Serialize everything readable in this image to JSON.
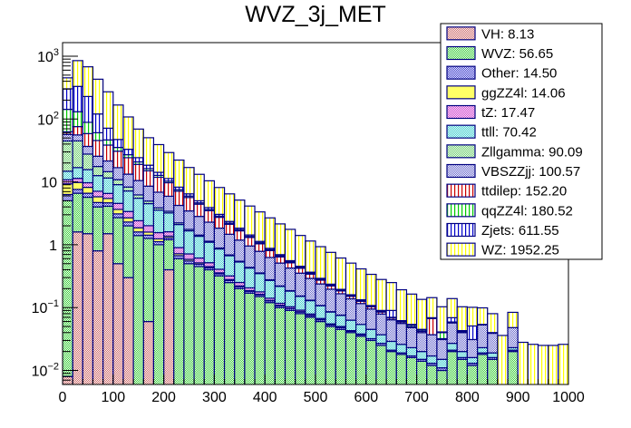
{
  "chart_data": {
    "type": "bar",
    "subtype": "stacked-histogram",
    "title": "WVZ_3j_MET",
    "xlabel": "",
    "ylabel": "",
    "xlim": [
      0,
      1000
    ],
    "ylim": [
      0.006,
      1600
    ],
    "yscale": "log",
    "bin_width": 20,
    "x_ticks": [
      0,
      100,
      200,
      300,
      400,
      500,
      600,
      700,
      800,
      900,
      1000
    ],
    "x_tick_labels": [
      "0",
      "100",
      "200",
      "300",
      "400",
      "500",
      "600",
      "700",
      "800",
      "900",
      "1000"
    ],
    "y_ticks": [
      0.01,
      0.1,
      1,
      10,
      100,
      1000
    ],
    "y_tick_labels": [
      {
        "base": "10",
        "exp": "−2"
      },
      {
        "base": "10",
        "exp": "−1"
      },
      {
        "base": "1",
        "exp": ""
      },
      {
        "base": "10",
        "exp": ""
      },
      {
        "base": "10",
        "exp": "2"
      },
      {
        "base": "10",
        "exp": "3"
      }
    ],
    "legend_position": "top-right",
    "series": [
      {
        "name": "VH",
        "total": "8.13",
        "fill": "#cc6666",
        "line": "#000080",
        "pattern": "checker",
        "values": [
          0.008,
          1.6,
          1.5,
          0.8,
          1.5,
          0.5,
          0.3,
          0,
          0.06,
          0,
          0.4,
          0,
          0,
          0,
          0,
          0,
          0,
          0,
          0,
          0,
          0,
          0,
          0,
          0,
          0,
          0,
          0,
          0,
          0,
          0,
          0,
          0,
          0,
          0,
          0,
          0,
          0,
          0,
          0,
          0,
          0,
          0,
          0,
          0,
          0,
          0,
          0,
          0,
          0,
          0
        ]
      },
      {
        "name": "WVZ",
        "total": "56.65",
        "fill": "#33cc33",
        "line": "#000080",
        "pattern": "checker",
        "values": [
          5,
          5,
          4.2,
          3.2,
          2.6,
          2.2,
          1.7,
          1.4,
          1.2,
          1.0,
          0.8,
          0.6,
          0.5,
          0.45,
          0.4,
          0.32,
          0.25,
          0.2,
          0.17,
          0.15,
          0.12,
          0.1,
          0.09,
          0.08,
          0.07,
          0.06,
          0.05,
          0.045,
          0.04,
          0.035,
          0.03,
          0.025,
          0.02,
          0.018,
          0.016,
          0.014,
          0.012,
          0.01,
          0.02,
          0.015,
          0.012,
          0.018,
          0.015,
          0,
          0.02,
          0,
          0,
          0,
          0,
          0
        ]
      },
      {
        "name": "Other",
        "total": "14.50",
        "fill": "#3333cc",
        "line": "#000080",
        "pattern": "checker",
        "values": [
          1.3,
          1.0,
          0.9,
          0.7,
          0.55,
          0.4,
          0.3,
          0.2,
          0.16,
          0.12,
          0.09,
          0.07,
          0.05,
          0.04,
          0.03,
          0.025,
          0.02,
          0.015,
          0.012,
          0.01,
          0.008,
          0.007,
          0.006,
          0.005,
          0.004,
          0.004,
          0.003,
          0.003,
          0.002,
          0.002,
          0.002,
          0.002,
          0.001,
          0.001,
          0.001,
          0.001,
          0.001,
          0.001,
          0.001,
          0.001,
          0.001,
          0.001,
          0.001,
          0,
          0.001,
          0,
          0,
          0,
          0,
          0
        ]
      },
      {
        "name": "ggZZ4l",
        "total": "14.06",
        "fill": "#ffff66",
        "line": "#000080",
        "pattern": "solid",
        "values": [
          3.0,
          2.2,
          1.6,
          1.1,
          0.8,
          0.55,
          0.38,
          0.26,
          0.17,
          0.12,
          0.08,
          0.05,
          0.035,
          0.025,
          0.018,
          0.012,
          0.009,
          0.006,
          0.004,
          0.003,
          0.002,
          0.002,
          0.001,
          0.001,
          0.001,
          0,
          0,
          0,
          0,
          0,
          0,
          0,
          0,
          0,
          0,
          0,
          0,
          0,
          0,
          0,
          0,
          0,
          0,
          0,
          0,
          0,
          0,
          0,
          0,
          0
        ]
      },
      {
        "name": "tZ",
        "total": "17.47",
        "fill": "#cc33cc",
        "line": "#000080",
        "pattern": "checker",
        "values": [
          1.5,
          1.6,
          1.5,
          1.3,
          1.1,
          0.9,
          0.7,
          0.55,
          0.42,
          0.32,
          0.24,
          0.18,
          0.13,
          0.1,
          0.07,
          0.05,
          0.04,
          0.03,
          0.02,
          0.015,
          0.011,
          0.008,
          0.006,
          0.005,
          0.004,
          0.003,
          0.002,
          0.002,
          0.001,
          0.001,
          0,
          0,
          0,
          0,
          0,
          0,
          0,
          0,
          0,
          0,
          0,
          0,
          0,
          0,
          0,
          0,
          0,
          0,
          0,
          0
        ]
      },
      {
        "name": "ttll",
        "total": "70.42",
        "fill": "#33cccc",
        "line": "#000080",
        "pattern": "checker",
        "values": [
          4,
          5.5,
          6,
          5.5,
          5,
          4.5,
          3.8,
          3.1,
          2.5,
          2.0,
          1.6,
          1.2,
          0.95,
          0.75,
          0.58,
          0.45,
          0.35,
          0.28,
          0.22,
          0.17,
          0.13,
          0.1,
          0.08,
          0.06,
          0.05,
          0.04,
          0.03,
          0.025,
          0.02,
          0.016,
          0.013,
          0.01,
          0.008,
          0.007,
          0.006,
          0.005,
          0.004,
          0.004,
          0.006,
          0.004,
          0.003,
          0.004,
          0.003,
          0,
          0.002,
          0,
          0,
          0,
          0,
          0
        ]
      },
      {
        "name": "Zllgamma",
        "total": "90.09",
        "fill": "#66cc66",
        "line": "#000080",
        "pattern": "checker",
        "values": [
          30,
          28,
          12,
          5,
          3,
          1.8,
          1.1,
          0.7,
          0.45,
          0.3,
          0.2,
          0.13,
          0.09,
          0.06,
          0.04,
          0.03,
          0.02,
          0.015,
          0.01,
          0.008,
          0.006,
          0.004,
          0.003,
          0.002,
          0.002,
          0.001,
          0.001,
          0.001,
          0,
          0,
          0,
          0,
          0,
          0,
          0,
          0,
          0,
          0,
          0,
          0,
          0,
          0,
          0,
          0,
          0,
          0,
          0,
          0,
          0,
          0
        ]
      },
      {
        "name": "VBSZZjj",
        "total": "100.57",
        "fill": "#6666cc",
        "line": "#000080",
        "pattern": "checker",
        "values": [
          12,
          11,
          9,
          8,
          7,
          6,
          5,
          4.3,
          3.6,
          3.0,
          2.5,
          2.0,
          1.7,
          1.4,
          1.15,
          0.95,
          0.78,
          0.64,
          0.52,
          0.43,
          0.35,
          0.29,
          0.24,
          0.2,
          0.16,
          0.13,
          0.11,
          0.09,
          0.075,
          0.062,
          0.05,
          0.042,
          0.035,
          0.03,
          0.025,
          0.02,
          0.02,
          0.016,
          0.03,
          0.02,
          0.015,
          0.03,
          0.02,
          0,
          0.025,
          0,
          0,
          0,
          0,
          0
        ]
      },
      {
        "name": "ttdilep",
        "total": "152.20",
        "fill": "#cc0000",
        "line": "#000080",
        "pattern": "vlines",
        "values": [
          6,
          20,
          22,
          20,
          17,
          14,
          11,
          8.5,
          6.5,
          5,
          3.8,
          2.9,
          2.2,
          1.6,
          1.2,
          0.9,
          0.65,
          0.48,
          0.35,
          0.25,
          0.18,
          0.13,
          0.09,
          0.07,
          0.05,
          0.035,
          0.025,
          0.018,
          0.013,
          0.01,
          0.008,
          0.006,
          0.004,
          0.003,
          0.002,
          0.002,
          0.03,
          0.001,
          0.001,
          0.001,
          0,
          0,
          0,
          0,
          0,
          0,
          0,
          0,
          0,
          0
        ]
      },
      {
        "name": "qqZZ4l",
        "total": "180.52",
        "fill": "#00cc00",
        "line": "#000080",
        "pattern": "vlines",
        "values": [
          80,
          55,
          30,
          15,
          8,
          4.5,
          2.8,
          1.8,
          1.2,
          0.85,
          0.6,
          0.42,
          0.3,
          0.22,
          0.16,
          0.12,
          0.09,
          0.07,
          0.05,
          0.04,
          0.03,
          0.025,
          0.02,
          0.016,
          0.013,
          0.01,
          0.008,
          0.006,
          0.005,
          0.004,
          0.003,
          0.003,
          0.002,
          0.002,
          0.003,
          0.002,
          0.001,
          0.008,
          0.001,
          0.001,
          0,
          0,
          0,
          0,
          0,
          0,
          0,
          0,
          0,
          0
        ]
      },
      {
        "name": "Zjets",
        "total": "611.55",
        "fill": "#0000cc",
        "line": "#000080",
        "pattern": "vlines",
        "values": [
          160,
          200,
          140,
          60,
          25,
          12,
          6,
          3.5,
          2.2,
          1.5,
          1.0,
          0.7,
          0.5,
          0.36,
          0.26,
          0.19,
          0.14,
          0.1,
          0.075,
          0.055,
          0.04,
          0.03,
          0.022,
          0.016,
          0.012,
          0.009,
          0.007,
          0.005,
          0.004,
          0.003,
          0.002,
          0.002,
          0.02,
          0.001,
          0.001,
          0.001,
          0.001,
          0.001,
          0.01,
          0.001,
          0.02,
          0.001,
          0.001,
          0,
          0,
          0,
          0,
          0,
          0,
          0
        ]
      },
      {
        "name": "WZ",
        "total": "1952.25",
        "fill": "#ffff00",
        "line": "#000080",
        "pattern": "vlines",
        "values": [
          150,
          520,
          450,
          310,
          200,
          120,
          75,
          45,
          32,
          25,
          18,
          14,
          10.5,
          8.2,
          6.5,
          5.1,
          4.1,
          3.3,
          2.7,
          2.2,
          1.8,
          1.45,
          1.2,
          0.95,
          0.78,
          0.64,
          0.52,
          0.42,
          0.35,
          0.28,
          0.23,
          0.19,
          0.16,
          0.13,
          0.11,
          0.09,
          0.075,
          0.062,
          0.07,
          0.06,
          0.05,
          0.045,
          0.04,
          0.036,
          0.036,
          0.028,
          0.026,
          0.025,
          0.025,
          0.026
        ]
      }
    ]
  }
}
